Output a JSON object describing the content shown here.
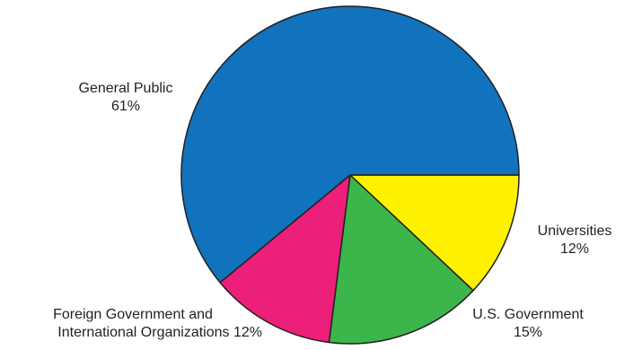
{
  "chart_data": {
    "type": "pie",
    "slices": [
      {
        "label": "Universities",
        "value": 12,
        "value_text": "12%",
        "color": "#fff200"
      },
      {
        "label": "U.S. Government",
        "value": 15,
        "value_text": "15%",
        "color": "#3cb54a"
      },
      {
        "label_lines": [
          "Foreign Government and",
          "International Organizations 12%"
        ],
        "value": 12,
        "color": "#ec1f7a"
      },
      {
        "label": "General Public",
        "value": 61,
        "value_text": "61%",
        "color": "#1172bd"
      }
    ]
  }
}
